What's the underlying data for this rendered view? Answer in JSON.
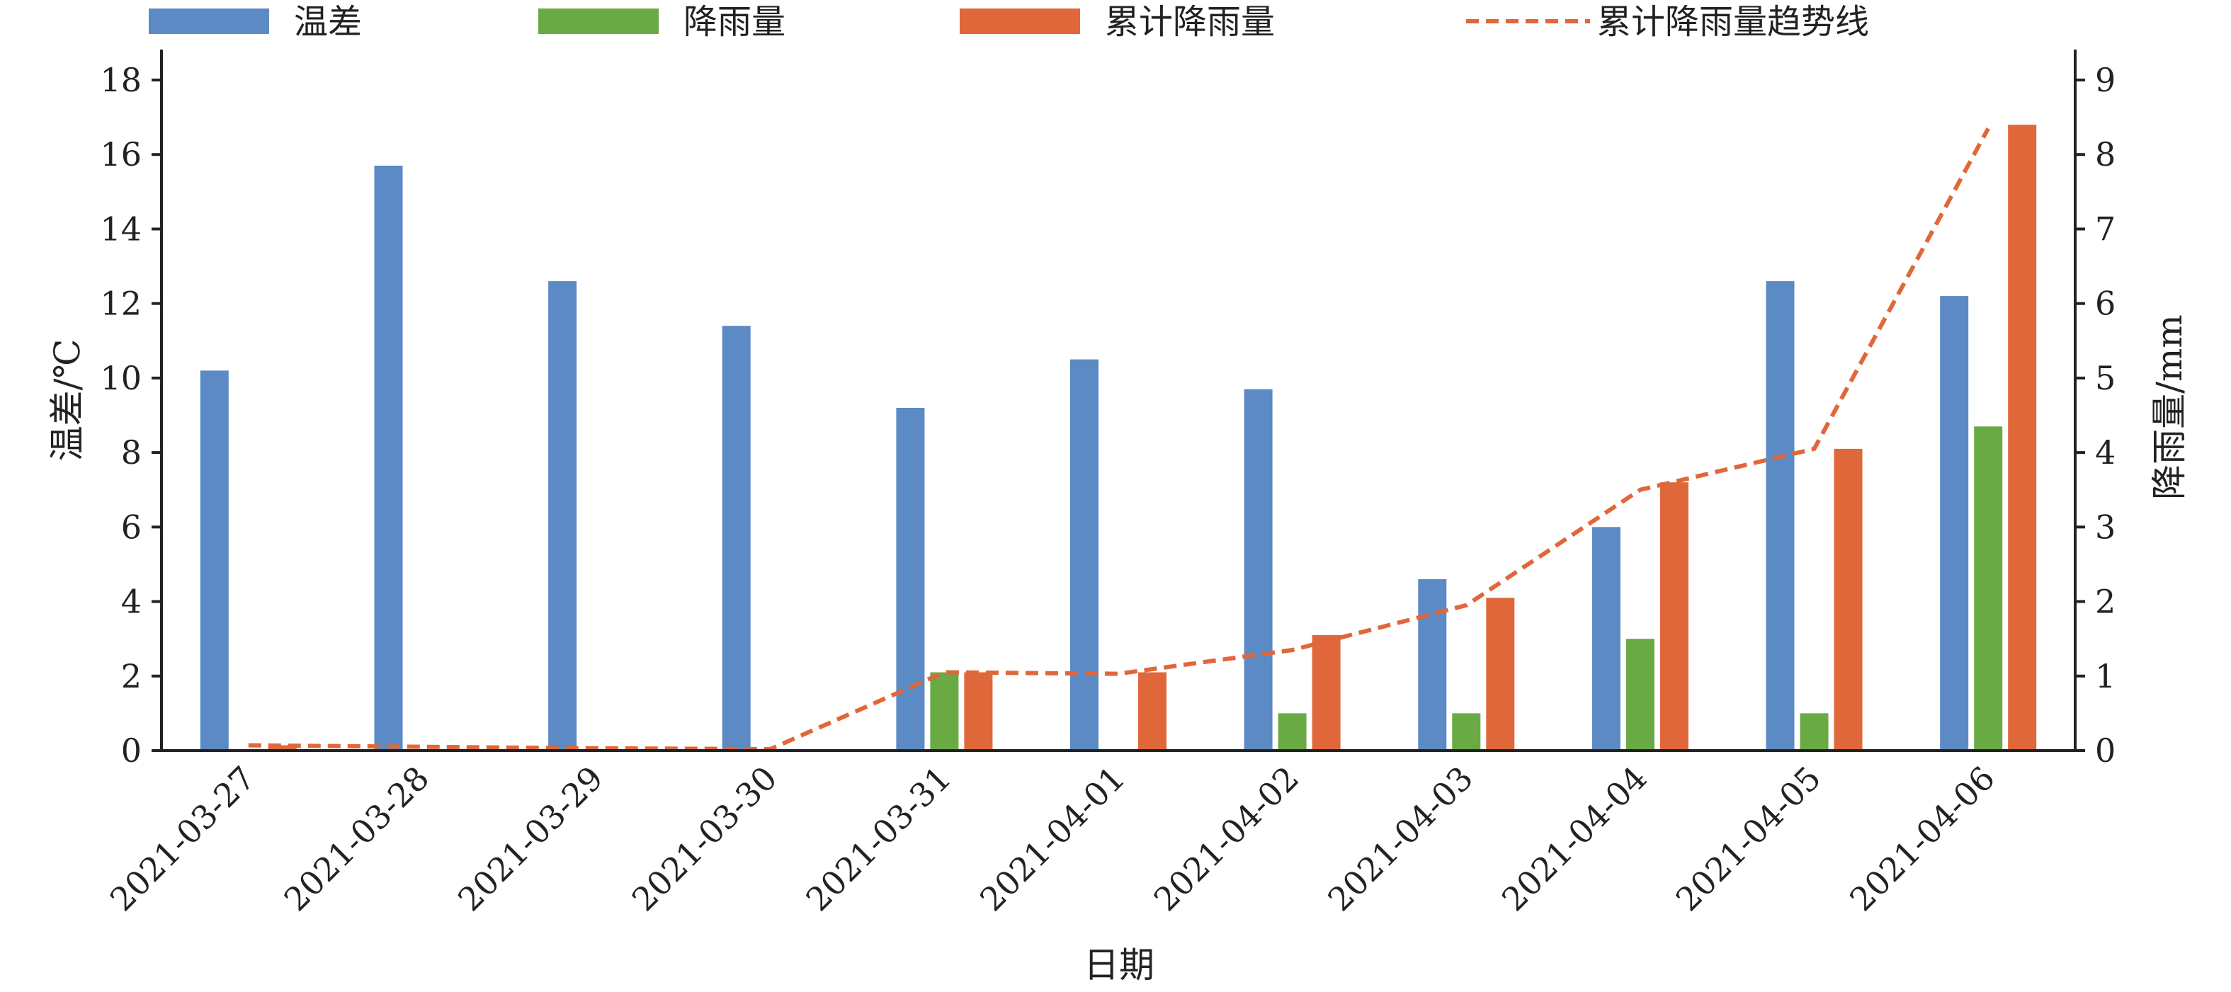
{
  "chart_data": {
    "type": "bar",
    "title": "",
    "categories": [
      "2021-03-27",
      "2021-03-28",
      "2021-03-29",
      "2021-03-30",
      "2021-03-31",
      "2021-04-01",
      "2021-04-02",
      "2021-04-03",
      "2021-04-04",
      "2021-04-05",
      "2021-04-06"
    ],
    "xlabel": "日期",
    "ylabel_left": "温差/℃",
    "ylabel_right": "降雨量/mm",
    "ylim_left": [
      0,
      18
    ],
    "ylim_right": [
      0,
      9
    ],
    "yticks_left": [
      0,
      2,
      4,
      6,
      8,
      10,
      12,
      14,
      16,
      18
    ],
    "yticks_right": [
      0,
      1,
      2,
      3,
      4,
      5,
      6,
      7,
      8,
      9
    ],
    "grid": false,
    "legend_position": "top",
    "series": [
      {
        "name": "温差",
        "axis": "left",
        "kind": "bar",
        "color": "#5b8ac4",
        "values": [
          10.2,
          15.7,
          12.6,
          11.4,
          9.2,
          10.5,
          9.7,
          4.6,
          6.0,
          12.6,
          12.2
        ]
      },
      {
        "name": "降雨量",
        "axis": "right",
        "kind": "bar",
        "color": "#6aaa45",
        "values": [
          0,
          0,
          0,
          0,
          1.05,
          0,
          0.5,
          0.5,
          1.5,
          0.5,
          4.35
        ]
      },
      {
        "name": "累计降雨量",
        "axis": "right",
        "kind": "bar",
        "color": "#e0673a",
        "values": [
          0.07,
          0,
          0,
          0,
          1.05,
          1.05,
          1.55,
          2.05,
          3.6,
          4.05,
          8.4
        ]
      },
      {
        "name": "累计降雨量趋势线",
        "axis": "right",
        "kind": "line",
        "color": "#e0673a",
        "values": [
          0.07,
          0.05,
          0.03,
          0.02,
          1.05,
          1.03,
          1.35,
          1.95,
          3.5,
          4.05,
          8.35
        ]
      }
    ]
  }
}
